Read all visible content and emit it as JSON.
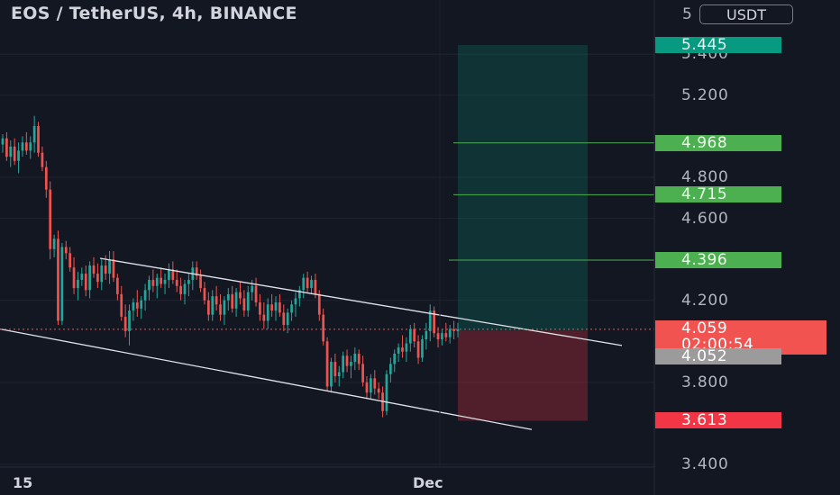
{
  "header": {
    "title": "EOS / TetherUS, 4h, BINANCE",
    "currency_button": "USDT",
    "axis_partial_label": "5"
  },
  "price_labels": {
    "target_top": "5.445",
    "tp3": "4.968",
    "tp2": "4.715",
    "tp1": "4.396",
    "last_price": "4.059",
    "countdown": "02:00:54",
    "entry": "4.052",
    "stop_loss": "3.613"
  },
  "colors": {
    "background": "#131722",
    "up": "#26a69a",
    "down": "#ef5350",
    "target_label": "#089981",
    "tp_label": "#4caf50",
    "price_label": "#f05350",
    "entry_label": "#9b9b9b",
    "stop_label": "#f23645"
  },
  "chart_data": {
    "type": "candlestick",
    "title": "EOS / TetherUS, 4h, BINANCE",
    "ylim": [
      3.36,
      5.56
    ],
    "y_ticks": [
      3.4,
      3.8,
      4.2,
      4.6,
      4.8,
      5.2,
      5.4
    ],
    "x_ticks": [
      "15",
      "Dec"
    ],
    "last_price": 4.059,
    "position": {
      "entry": 4.052,
      "target": 5.445,
      "stop": 3.613,
      "take_profits": [
        4.396,
        4.715,
        4.968
      ]
    },
    "channel": {
      "upper": [
        [
          111,
          4.405
        ],
        [
          690,
          3.98
        ]
      ],
      "lower": [
        [
          0,
          4.06
        ],
        [
          590,
          3.57
        ]
      ]
    },
    "candles": [
      [
        4.96,
        5.01,
        4.92,
        4.99
      ],
      [
        4.99,
        5.02,
        4.88,
        4.9
      ],
      [
        4.9,
        4.98,
        4.85,
        4.95
      ],
      [
        4.95,
        4.99,
        4.86,
        4.88
      ],
      [
        4.88,
        4.97,
        4.82,
        4.93
      ],
      [
        4.93,
        5.0,
        4.9,
        4.97
      ],
      [
        4.97,
        5.02,
        4.91,
        4.93
      ],
      [
        4.93,
        5.0,
        4.89,
        4.97
      ],
      [
        4.97,
        5.1,
        4.92,
        5.05
      ],
      [
        5.05,
        5.07,
        4.9,
        4.92
      ],
      [
        4.92,
        4.95,
        4.83,
        4.85
      ],
      [
        4.85,
        4.88,
        4.7,
        4.74
      ],
      [
        4.74,
        4.78,
        4.4,
        4.45
      ],
      [
        4.45,
        4.52,
        4.41,
        4.5
      ],
      [
        4.5,
        4.54,
        4.08,
        4.1
      ],
      [
        4.1,
        4.48,
        4.08,
        4.46
      ],
      [
        4.46,
        4.49,
        4.4,
        4.43
      ],
      [
        4.43,
        4.46,
        4.34,
        4.36
      ],
      [
        4.36,
        4.41,
        4.23,
        4.26
      ],
      [
        4.26,
        4.34,
        4.2,
        4.3
      ],
      [
        4.3,
        4.36,
        4.27,
        4.33
      ],
      [
        4.33,
        4.37,
        4.22,
        4.25
      ],
      [
        4.25,
        4.39,
        4.21,
        4.37
      ],
      [
        4.37,
        4.41,
        4.31,
        4.33
      ],
      [
        4.33,
        4.38,
        4.26,
        4.29
      ],
      [
        4.29,
        4.4,
        4.25,
        4.37
      ],
      [
        4.37,
        4.42,
        4.3,
        4.33
      ],
      [
        4.33,
        4.44,
        4.28,
        4.4
      ],
      [
        4.4,
        4.44,
        4.29,
        4.31
      ],
      [
        4.31,
        4.33,
        4.2,
        4.23
      ],
      [
        4.23,
        4.27,
        4.1,
        4.12
      ],
      [
        4.12,
        4.18,
        4.02,
        4.05
      ],
      [
        4.05,
        4.18,
        3.98,
        4.15
      ],
      [
        4.15,
        4.21,
        4.1,
        4.19
      ],
      [
        4.19,
        4.25,
        4.12,
        4.16
      ],
      [
        4.16,
        4.22,
        4.11,
        4.2
      ],
      [
        4.2,
        4.28,
        4.15,
        4.25
      ],
      [
        4.25,
        4.32,
        4.2,
        4.3
      ],
      [
        4.3,
        4.35,
        4.24,
        4.27
      ],
      [
        4.27,
        4.33,
        4.21,
        4.31
      ],
      [
        4.31,
        4.36,
        4.26,
        4.28
      ],
      [
        4.28,
        4.33,
        4.23,
        4.3
      ],
      [
        4.3,
        4.38,
        4.26,
        4.35
      ],
      [
        4.35,
        4.39,
        4.28,
        4.3
      ],
      [
        4.3,
        4.35,
        4.24,
        4.27
      ],
      [
        4.27,
        4.31,
        4.2,
        4.23
      ],
      [
        4.23,
        4.3,
        4.18,
        4.28
      ],
      [
        4.28,
        4.33,
        4.22,
        4.3
      ],
      [
        4.3,
        4.39,
        4.25,
        4.36
      ],
      [
        4.36,
        4.39,
        4.3,
        4.32
      ],
      [
        4.32,
        4.35,
        4.24,
        4.26
      ],
      [
        4.26,
        4.29,
        4.18,
        4.2
      ],
      [
        4.2,
        4.24,
        4.1,
        4.13
      ],
      [
        4.13,
        4.25,
        4.1,
        4.22
      ],
      [
        4.22,
        4.27,
        4.15,
        4.18
      ],
      [
        4.18,
        4.23,
        4.1,
        4.13
      ],
      [
        4.13,
        4.22,
        4.08,
        4.2
      ],
      [
        4.2,
        4.26,
        4.15,
        4.23
      ],
      [
        4.23,
        4.27,
        4.14,
        4.16
      ],
      [
        4.16,
        4.26,
        4.12,
        4.24
      ],
      [
        4.24,
        4.29,
        4.18,
        4.21
      ],
      [
        4.21,
        4.25,
        4.12,
        4.15
      ],
      [
        4.15,
        4.27,
        4.12,
        4.24
      ],
      [
        4.24,
        4.3,
        4.2,
        4.27
      ],
      [
        4.27,
        4.31,
        4.17,
        4.19
      ],
      [
        4.19,
        4.23,
        4.1,
        4.13
      ],
      [
        4.13,
        4.19,
        4.06,
        4.1
      ],
      [
        4.1,
        4.21,
        4.06,
        4.18
      ],
      [
        4.18,
        4.23,
        4.12,
        4.15
      ],
      [
        4.15,
        4.22,
        4.1,
        4.19
      ],
      [
        4.19,
        4.23,
        4.12,
        4.14
      ],
      [
        4.14,
        4.18,
        4.05,
        4.08
      ],
      [
        4.08,
        4.16,
        4.04,
        4.14
      ],
      [
        4.14,
        4.2,
        4.1,
        4.18
      ],
      [
        4.18,
        4.24,
        4.12,
        4.21
      ],
      [
        4.21,
        4.27,
        4.17,
        4.25
      ],
      [
        4.25,
        4.33,
        4.21,
        4.31
      ],
      [
        4.31,
        4.34,
        4.24,
        4.26
      ],
      [
        4.26,
        4.32,
        4.23,
        4.3
      ],
      [
        4.3,
        4.33,
        4.21,
        4.23
      ],
      [
        4.23,
        4.25,
        4.1,
        4.13
      ],
      [
        4.13,
        4.16,
        3.98,
        4.0
      ],
      [
        4.0,
        4.02,
        3.76,
        3.78
      ],
      [
        3.78,
        3.92,
        3.75,
        3.9
      ],
      [
        3.9,
        3.94,
        3.8,
        3.83
      ],
      [
        3.83,
        3.88,
        3.78,
        3.85
      ],
      [
        3.85,
        3.95,
        3.82,
        3.93
      ],
      [
        3.93,
        3.96,
        3.85,
        3.88
      ],
      [
        3.88,
        3.93,
        3.82,
        3.9
      ],
      [
        3.9,
        3.97,
        3.86,
        3.94
      ],
      [
        3.94,
        3.96,
        3.86,
        3.89
      ],
      [
        3.89,
        3.93,
        3.78,
        3.8
      ],
      [
        3.8,
        3.83,
        3.72,
        3.75
      ],
      [
        3.75,
        3.84,
        3.72,
        3.82
      ],
      [
        3.82,
        3.86,
        3.74,
        3.77
      ],
      [
        3.77,
        3.8,
        3.72,
        3.75
      ],
      [
        3.75,
        3.78,
        3.63,
        3.66
      ],
      [
        3.66,
        3.86,
        3.64,
        3.84
      ],
      [
        3.84,
        3.92,
        3.8,
        3.89
      ],
      [
        3.89,
        3.96,
        3.85,
        3.94
      ],
      [
        3.94,
        3.99,
        3.9,
        3.97
      ],
      [
        3.97,
        4.03,
        3.92,
        3.95
      ],
      [
        3.95,
        4.02,
        3.9,
        3.99
      ],
      [
        3.99,
        4.08,
        3.95,
        4.06
      ],
      [
        4.06,
        4.09,
        3.97,
        4.0
      ],
      [
        4.0,
        4.03,
        3.89,
        3.92
      ],
      [
        3.92,
        4.03,
        3.9,
        4.01
      ],
      [
        4.01,
        4.09,
        3.96,
        4.05
      ],
      [
        4.05,
        4.18,
        4.0,
        4.15
      ],
      [
        4.15,
        4.17,
        4.02,
        4.04
      ],
      [
        4.04,
        4.07,
        3.97,
        4.01
      ],
      [
        4.01,
        4.06,
        3.98,
        4.04
      ],
      [
        4.04,
        4.09,
        4.0,
        4.02
      ],
      [
        4.02,
        4.08,
        3.99,
        4.06
      ],
      [
        4.06,
        4.1,
        4.01,
        4.05
      ],
      [
        4.05,
        4.09,
        4.02,
        4.059
      ]
    ]
  }
}
